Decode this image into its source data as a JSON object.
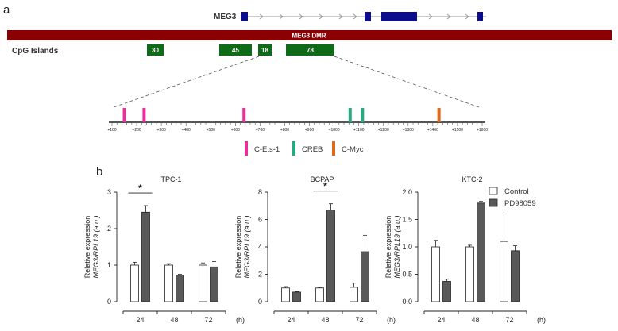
{
  "panel_a": {
    "letter": "a",
    "gene_label": "MEG3",
    "dmr_label": "MEG3 DMR",
    "cpg_label": "CpG Islands",
    "colors": {
      "exon": "#0b0d8c",
      "dmr": "#8b0000",
      "island": "#0e6b18",
      "line": "#999999"
    },
    "islands": [
      {
        "label": "30"
      },
      {
        "label": "45"
      },
      {
        "label": "18"
      },
      {
        "label": "78"
      }
    ],
    "axis_ticks": [
      "+100",
      "+200",
      "+300",
      "+400",
      "+500",
      "+600",
      "+700",
      "+800",
      "+900",
      "+1000",
      "+1100",
      "+1200",
      "+1300",
      "+1400",
      "+1500",
      "+1600"
    ],
    "sites": [
      {
        "pos": 150,
        "type": "C-Ets-1"
      },
      {
        "pos": 230,
        "type": "C-Ets-1"
      },
      {
        "pos": 635,
        "type": "C-Ets-1"
      },
      {
        "pos": 1065,
        "type": "CREB"
      },
      {
        "pos": 1115,
        "type": "CREB"
      },
      {
        "pos": 1425,
        "type": "C-Myc"
      }
    ],
    "legend": [
      {
        "name": "C-Ets-1",
        "color": "#e8309a"
      },
      {
        "name": "CREB",
        "color": "#2aa882"
      },
      {
        "name": "C-Myc",
        "color": "#e06a1c"
      }
    ]
  },
  "panel_b": {
    "letter": "b",
    "ylabel_line1": "Relative expression",
    "ylabel_line2": "MEG3/RPL19 (a.u.)",
    "x_unit": "(h)",
    "legend": [
      {
        "name": "Control",
        "color": "#ffffff"
      },
      {
        "name": "PD98059",
        "color": "#595959"
      }
    ]
  },
  "chart_data": [
    {
      "type": "bar",
      "title": "TPC-1",
      "categories": [
        "24",
        "48",
        "72"
      ],
      "xlabel": "(h)",
      "ylabel": "Relative expression MEG3/RPL19 (a.u.)",
      "ylim": [
        0,
        3
      ],
      "yticks": [
        0,
        1,
        2,
        3
      ],
      "series": [
        {
          "name": "Control",
          "values": [
            1.0,
            1.0,
            1.0
          ],
          "errors": [
            0.08,
            0.04,
            0.06
          ]
        },
        {
          "name": "PD98059",
          "values": [
            2.45,
            0.73,
            0.95
          ],
          "errors": [
            0.18,
            0.02,
            0.15
          ]
        }
      ],
      "significance": [
        {
          "category": "24",
          "label": "*"
        }
      ]
    },
    {
      "type": "bar",
      "title": "BCPAP",
      "categories": [
        "24",
        "48",
        "72"
      ],
      "xlabel": "(h)",
      "ylabel": "Relative expression MEG3/RPL19 (a.u.)",
      "ylim": [
        0,
        8
      ],
      "yticks": [
        0,
        2,
        4,
        6,
        8
      ],
      "series": [
        {
          "name": "Control",
          "values": [
            1.0,
            1.0,
            1.05
          ],
          "errors": [
            0.1,
            0.05,
            0.3
          ]
        },
        {
          "name": "PD98059",
          "values": [
            0.7,
            6.7,
            3.65
          ],
          "errors": [
            0.05,
            0.45,
            1.2
          ]
        }
      ],
      "significance": [
        {
          "category": "48",
          "label": "*"
        }
      ]
    },
    {
      "type": "bar",
      "title": "KTC-2",
      "categories": [
        "24",
        "48",
        "72"
      ],
      "xlabel": "(h)",
      "ylabel": "Relative expression MEG3/RPL19 (a.u.)",
      "ylim": [
        0,
        2.0
      ],
      "yticks": [
        0.0,
        0.5,
        1.0,
        1.5,
        2.0
      ],
      "series": [
        {
          "name": "Control",
          "values": [
            1.0,
            1.0,
            1.1
          ],
          "errors": [
            0.12,
            0.03,
            0.5
          ]
        },
        {
          "name": "PD98059",
          "values": [
            0.37,
            1.8,
            0.93
          ],
          "errors": [
            0.04,
            0.03,
            0.09
          ]
        }
      ],
      "significance": []
    }
  ]
}
